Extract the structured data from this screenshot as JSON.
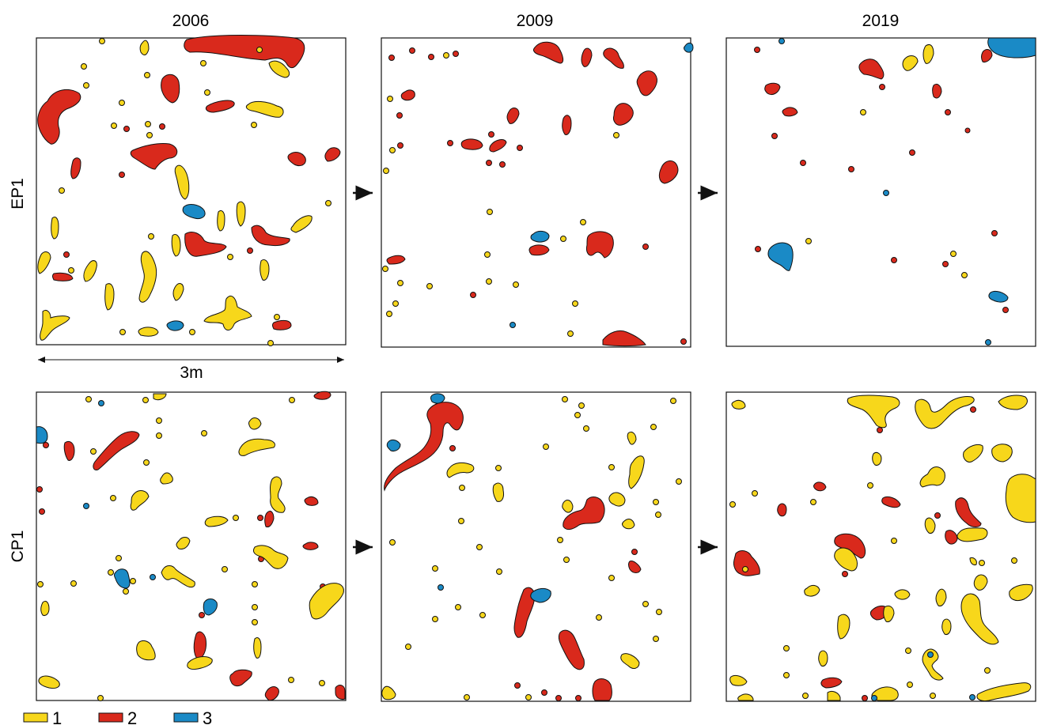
{
  "columns": [
    "2006",
    "2009",
    "2019"
  ],
  "rows": [
    "EP1",
    "CP1"
  ],
  "scale_bar": {
    "label": "3m"
  },
  "transition_arrow": "→",
  "colors": {
    "1": "#f7d71b",
    "2": "#d9291c",
    "3": "#1a8ac6",
    "outline": "#111111"
  },
  "legend": [
    {
      "key": "1",
      "label": "1"
    },
    {
      "key": "2",
      "label": "2"
    },
    {
      "key": "3",
      "label": "3"
    }
  ]
}
